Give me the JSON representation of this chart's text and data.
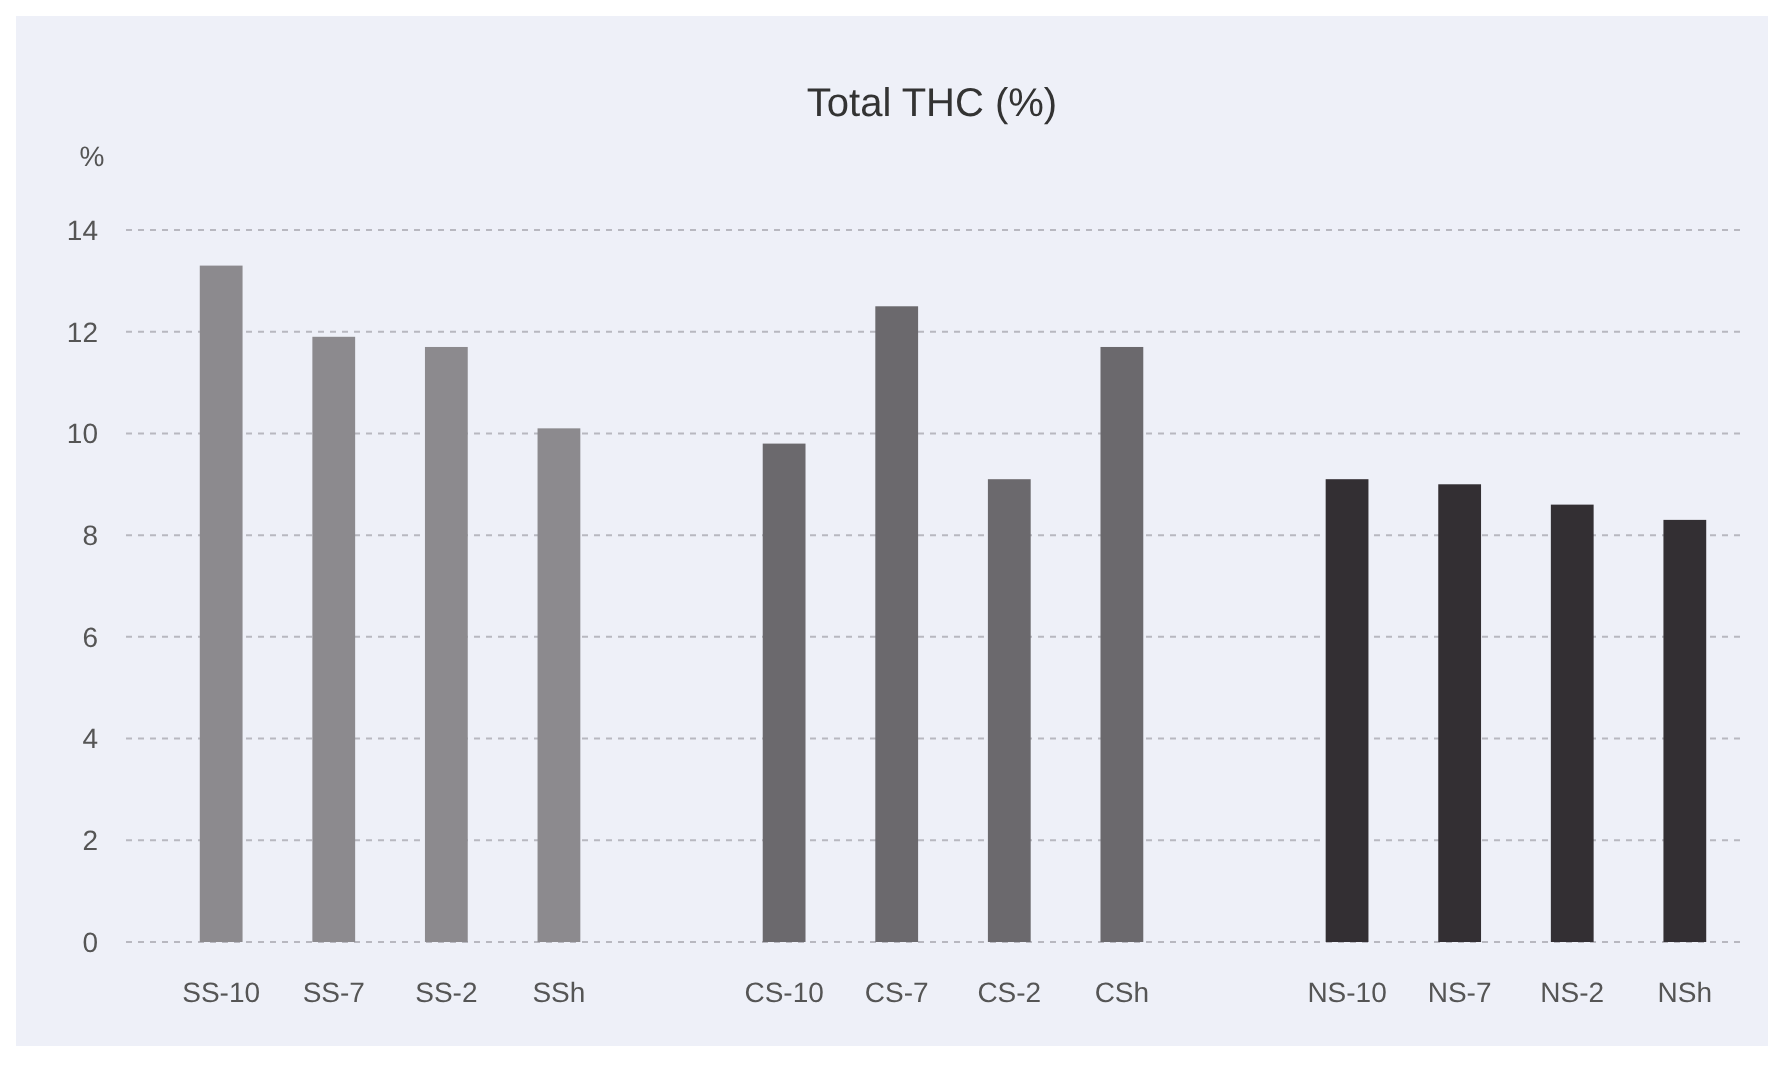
{
  "chart_data": {
    "type": "bar",
    "title": "Total THC (%)",
    "ylabel": "%",
    "categories": [
      "SS-10",
      "SS-7",
      "SS-2",
      "SSh",
      null,
      "CS-10",
      "CS-7",
      "CS-2",
      "CSh",
      null,
      "NS-10",
      "NS-7",
      "NS-2",
      "NSh"
    ],
    "values": [
      13.3,
      11.9,
      11.7,
      10.1,
      null,
      9.8,
      12.5,
      9.1,
      11.7,
      null,
      9.1,
      9.0,
      8.6,
      8.3
    ],
    "colors": [
      "#8c8a8e",
      "#8c8a8e",
      "#8c8a8e",
      "#8c8a8e",
      null,
      "#6b696d",
      "#6b696d",
      "#6b696d",
      "#6b696d",
      null,
      "#332f33",
      "#332f33",
      "#332f33",
      "#332f33"
    ],
    "ylim": [
      0,
      14
    ],
    "yticks": [
      0,
      2,
      4,
      6,
      8,
      10,
      12,
      14
    ],
    "grid": "y"
  }
}
